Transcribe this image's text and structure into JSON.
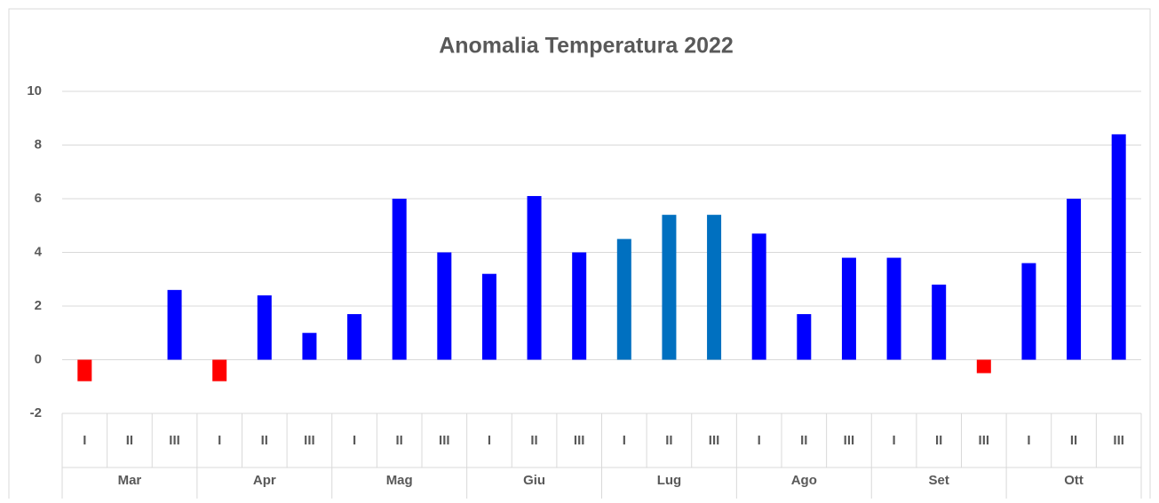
{
  "chart_data": {
    "type": "bar",
    "title": "Anomalia Temperatura 2022",
    "categories": [
      "I",
      "II",
      "III",
      "I",
      "II",
      "III",
      "I",
      "II",
      "III",
      "I",
      "II",
      "III",
      "I",
      "II",
      "III",
      "I",
      "II",
      "III",
      "I",
      "II",
      "III",
      "I",
      "II",
      "III"
    ],
    "groups": [
      "Mar",
      "Apr",
      "Mag",
      "Giu",
      "Lug",
      "Ago",
      "Set",
      "Ott"
    ],
    "values": [
      -0.8,
      0,
      2.6,
      -0.8,
      2.4,
      1.0,
      1.7,
      6.0,
      4.0,
      3.2,
      6.1,
      4.0,
      4.5,
      5.4,
      5.4,
      4.7,
      1.7,
      3.8,
      3.8,
      2.8,
      -0.5,
      3.6,
      6.0,
      8.4
    ],
    "colors": [
      "#ff0000",
      "#0000ff",
      "#0000ff",
      "#ff0000",
      "#0000ff",
      "#0000ff",
      "#0000ff",
      "#0000ff",
      "#0000ff",
      "#0000ff",
      "#0000ff",
      "#0000ff",
      "#0070c0",
      "#0070c0",
      "#0070c0",
      "#0000ff",
      "#0000ff",
      "#0000ff",
      "#0000ff",
      "#0000ff",
      "#ff0000",
      "#0000ff",
      "#0000ff",
      "#0000ff"
    ],
    "ylim": [
      -2,
      10
    ],
    "yticks": [
      -2,
      0,
      2,
      4,
      6,
      8,
      10
    ],
    "grid": true
  }
}
